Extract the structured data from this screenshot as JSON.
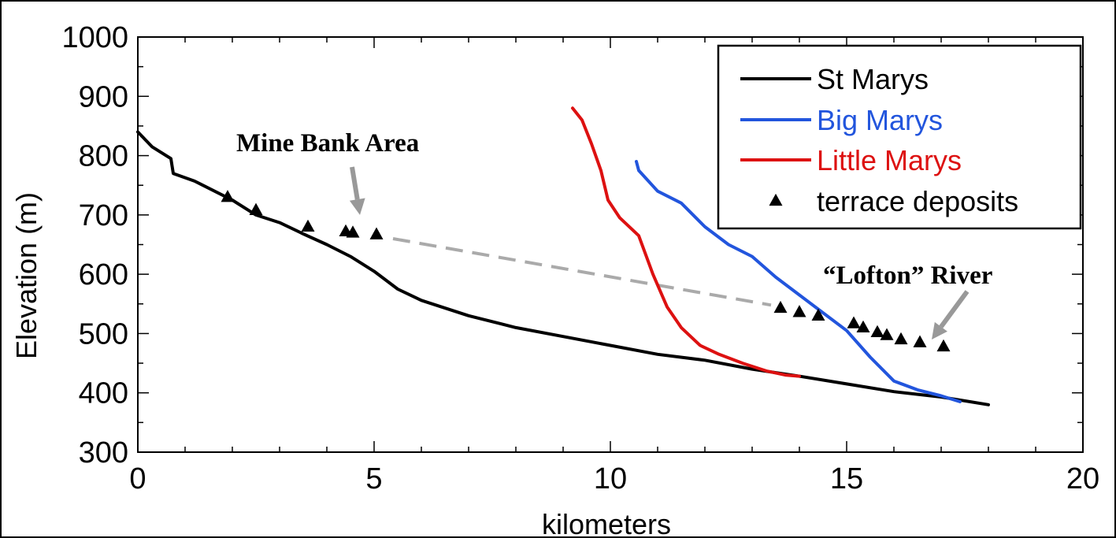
{
  "chart_data": {
    "type": "line",
    "title": "",
    "xlabel": "kilometers",
    "ylabel": "Elevation (m)",
    "xlim": [
      0,
      20
    ],
    "ylim": [
      300,
      1000
    ],
    "xticks": [
      0,
      5,
      10,
      15,
      20
    ],
    "yticks": [
      300,
      400,
      500,
      600,
      700,
      800,
      900,
      1000
    ],
    "grid": false,
    "legend_position": "top-right",
    "series": [
      {
        "name": "St Marys",
        "color": "#000000",
        "style": "solid",
        "x": [
          0,
          0.3,
          0.7,
          0.75,
          1.2,
          2.0,
          2.5,
          3.0,
          3.5,
          4.0,
          4.5,
          5.0,
          5.5,
          6.0,
          7.0,
          8.0,
          9.0,
          10.0,
          11.0,
          12.0,
          13.0,
          14.0,
          15.0,
          16.0,
          17.0,
          18.0
        ],
        "y": [
          840,
          815,
          795,
          770,
          757,
          725,
          700,
          687,
          668,
          650,
          630,
          605,
          575,
          556,
          530,
          510,
          495,
          480,
          465,
          455,
          440,
          428,
          415,
          402,
          393,
          380
        ]
      },
      {
        "name": "Big Marys",
        "color": "#2255dd",
        "style": "solid",
        "x": [
          10.55,
          10.6,
          11.0,
          11.5,
          12.0,
          12.5,
          13.0,
          13.5,
          14.0,
          14.5,
          15.0,
          15.5,
          16.0,
          16.5,
          17.0,
          17.4
        ],
        "y": [
          790,
          775,
          740,
          720,
          680,
          650,
          630,
          595,
          565,
          535,
          505,
          460,
          420,
          405,
          395,
          385
        ]
      },
      {
        "name": "Little Marys",
        "color": "#dd1111",
        "style": "solid",
        "x": [
          9.2,
          9.4,
          9.6,
          9.8,
          9.95,
          10.2,
          10.6,
          10.9,
          11.2,
          11.5,
          11.9,
          12.3,
          12.8,
          13.3,
          13.7,
          14.0
        ],
        "y": [
          880,
          860,
          820,
          775,
          725,
          695,
          665,
          600,
          545,
          510,
          480,
          465,
          450,
          437,
          430,
          428
        ]
      },
      {
        "name": "terrace deposits",
        "type": "scatter",
        "marker": "triangle",
        "color": "#000000",
        "x": [
          1.9,
          2.5,
          3.6,
          4.4,
          4.55,
          5.05,
          13.6,
          14.0,
          14.4,
          15.15,
          15.35,
          15.65,
          15.85,
          16.15,
          16.55,
          17.05
        ],
        "y": [
          730,
          708,
          680,
          672,
          670,
          667,
          543,
          536,
          530,
          517,
          510,
          502,
          497,
          490,
          485,
          478
        ]
      }
    ],
    "connector": {
      "from": [
        5.4,
        660
      ],
      "to": [
        13.4,
        548
      ]
    },
    "annotations": [
      {
        "text": "Mine Bank Area",
        "points_to": [
          4.7,
          700
        ]
      },
      {
        "text": "“Lofton” River",
        "points_to": [
          16.8,
          490
        ]
      }
    ]
  }
}
